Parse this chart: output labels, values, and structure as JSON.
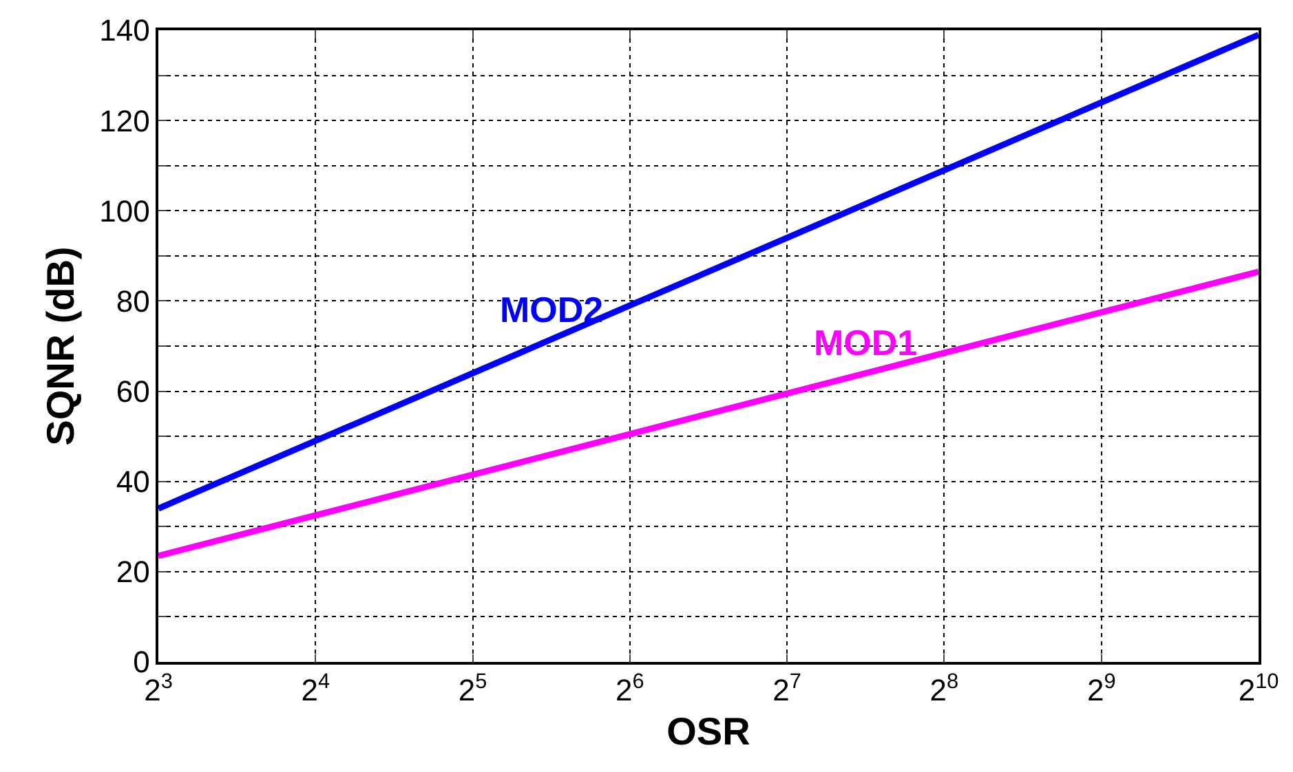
{
  "chart_data": {
    "type": "line",
    "xlabel": "OSR",
    "ylabel": "SQNR (dB)",
    "x": [
      8,
      16,
      32,
      64,
      128,
      256,
      512,
      1024
    ],
    "series": [
      {
        "name": "MOD2",
        "color": "#0000ff",
        "values": [
          34,
          49,
          64,
          79,
          94,
          109,
          124,
          139
        ]
      },
      {
        "name": "MOD1",
        "color": "#ff00ff",
        "values": [
          23.5,
          32.5,
          41.5,
          50.5,
          59.5,
          68.5,
          77.5,
          86.5
        ]
      }
    ],
    "log": "x",
    "xlim": [
      8,
      1024
    ],
    "xticks": [
      {
        "value": 8,
        "label": "2$^{3}$"
      },
      {
        "value": 16,
        "label": "2$^{4}$"
      },
      {
        "value": 32,
        "label": "2$^{5}$"
      },
      {
        "value": 64,
        "label": "2$^{6}$"
      },
      {
        "value": 128,
        "label": "2$^{7}$"
      },
      {
        "value": 256,
        "label": "2$^{8}$"
      },
      {
        "value": 512,
        "label": "2$^{9}$"
      },
      {
        "value": 1024,
        "label": "2$^{10}$"
      }
    ],
    "ylim": [
      0,
      140
    ],
    "yticks": [
      0,
      {
        "value": 10,
        "label": null
      },
      20,
      {
        "value": 30,
        "label": null
      },
      40,
      {
        "value": 50,
        "label": null
      },
      60,
      {
        "value": 70,
        "label": null
      },
      80,
      {
        "value": 90,
        "label": null
      },
      100,
      {
        "value": 110,
        "label": null
      },
      120,
      {
        "value": 130,
        "label": null
      },
      140
    ],
    "grid": true,
    "legend": false,
    "marker": "none",
    "line_style": "solid"
  }
}
